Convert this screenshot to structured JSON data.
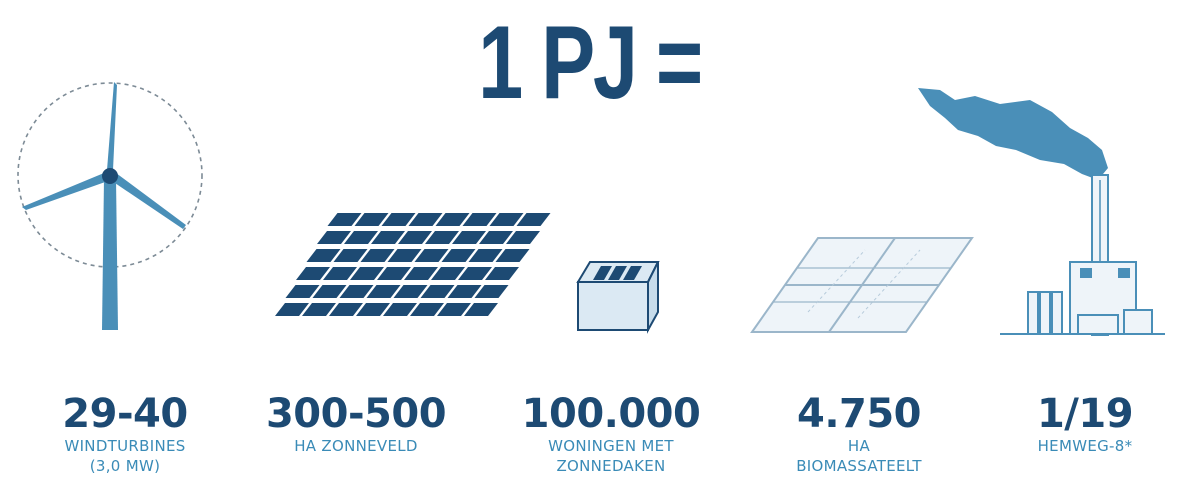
{
  "headline": "1 PJ =",
  "colors": {
    "dark_blue": "#1d4a73",
    "light_blue": "#4a8fb8",
    "pale_blue": "#dbe9f3"
  },
  "items": [
    {
      "icon": "wind-turbine-icon",
      "value": "29-40",
      "label_1": "WINDTURBINES",
      "label_2": "(3,0 MW)"
    },
    {
      "icon": "solar-field-icon",
      "value": "300-500",
      "label_1": "HA ZONNEVELD",
      "label_2": ""
    },
    {
      "icon": "house-solar-roof-icon",
      "value": "100.000",
      "label_1": "WONINGEN MET",
      "label_2": "ZONNEDAKEN"
    },
    {
      "icon": "biomass-field-icon",
      "value": "4.750",
      "label_1": "HA",
      "label_2": "BIOMASSATEELT"
    },
    {
      "icon": "power-plant-icon",
      "value": "1/19",
      "label_1": "HEMWEG-8*",
      "label_2": ""
    }
  ]
}
